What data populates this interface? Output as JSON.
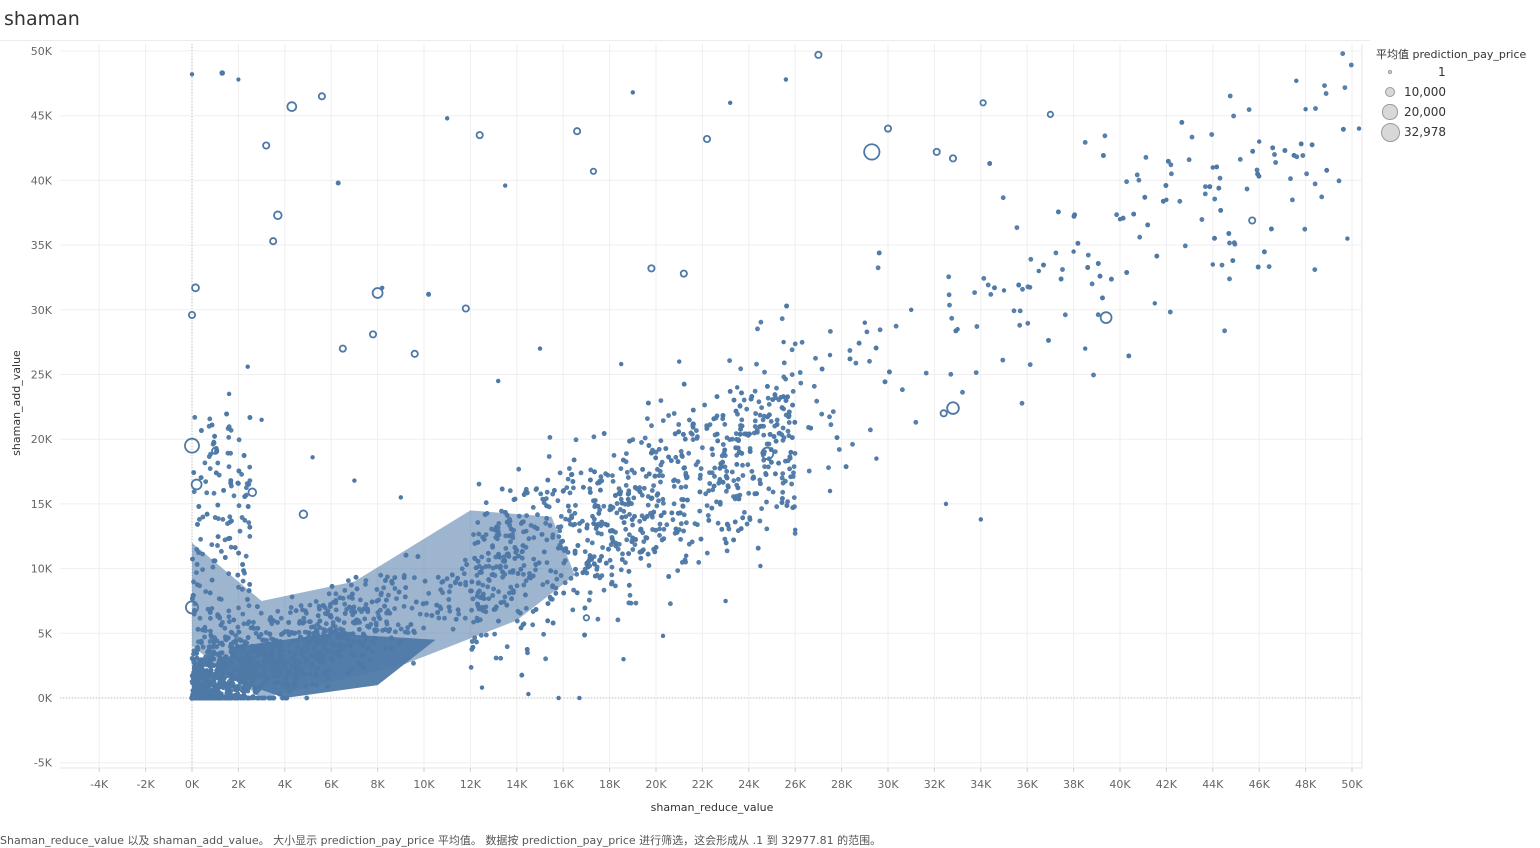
{
  "sheet": {
    "title": "shaman"
  },
  "legend": {
    "title": "平均值 prediction_pay_price",
    "items": [
      {
        "label": "1",
        "value": 1
      },
      {
        "label": "10,000",
        "value": 10000
      },
      {
        "label": "20,000",
        "value": 20000
      },
      {
        "label": "32,978",
        "value": 32978
      }
    ]
  },
  "caption": "Shaman_reduce_value 以及 shaman_add_value。 大小显示 prediction_pay_price 平均值。 数据按 prediction_pay_price 进行筛选，这会形成从 .1 到 32977.81 的范围。",
  "colors": {
    "mark": "#4e79a7",
    "grid": "#efefef",
    "zero_line": "#bdbdbd",
    "legend_fill": "#d8d8d8"
  },
  "chart_data": {
    "type": "scatter",
    "title": "shaman",
    "xlabel": "shaman_reduce_value",
    "ylabel": "shaman_add_value",
    "size_field": "平均值 prediction_pay_price",
    "size_range": [
      1,
      32978
    ],
    "xlim": [
      -5000,
      50500
    ],
    "ylim": [
      -5500,
      50500
    ],
    "x_ticks": [
      {
        "value": -4000,
        "label": "-4K"
      },
      {
        "value": -2000,
        "label": "-2K"
      },
      {
        "value": 0,
        "label": "0K"
      },
      {
        "value": 2000,
        "label": "2K"
      },
      {
        "value": 4000,
        "label": "4K"
      },
      {
        "value": 6000,
        "label": "6K"
      },
      {
        "value": 8000,
        "label": "8K"
      },
      {
        "value": 10000,
        "label": "10K"
      },
      {
        "value": 12000,
        "label": "12K"
      },
      {
        "value": 14000,
        "label": "14K"
      },
      {
        "value": 16000,
        "label": "16K"
      },
      {
        "value": 18000,
        "label": "18K"
      },
      {
        "value": 20000,
        "label": "20K"
      },
      {
        "value": 22000,
        "label": "22K"
      },
      {
        "value": 24000,
        "label": "24K"
      },
      {
        "value": 26000,
        "label": "26K"
      },
      {
        "value": 28000,
        "label": "28K"
      },
      {
        "value": 30000,
        "label": "30K"
      },
      {
        "value": 32000,
        "label": "32K"
      },
      {
        "value": 34000,
        "label": "34K"
      },
      {
        "value": 36000,
        "label": "36K"
      },
      {
        "value": 38000,
        "label": "38K"
      },
      {
        "value": 40000,
        "label": "40K"
      },
      {
        "value": 42000,
        "label": "42K"
      },
      {
        "value": 44000,
        "label": "44K"
      },
      {
        "value": 46000,
        "label": "46K"
      },
      {
        "value": 48000,
        "label": "48K"
      },
      {
        "value": 50000,
        "label": "50K"
      }
    ],
    "y_ticks": [
      {
        "value": -5000,
        "label": "-5K"
      },
      {
        "value": 0,
        "label": "0K"
      },
      {
        "value": 5000,
        "label": "5K"
      },
      {
        "value": 10000,
        "label": "10K"
      },
      {
        "value": 15000,
        "label": "15K"
      },
      {
        "value": 20000,
        "label": "20K"
      },
      {
        "value": 25000,
        "label": "25K"
      },
      {
        "value": 30000,
        "label": "30K"
      },
      {
        "value": 35000,
        "label": "35K"
      },
      {
        "value": 40000,
        "label": "40K"
      },
      {
        "value": 45000,
        "label": "45K"
      },
      {
        "value": 50000,
        "label": "50K"
      }
    ],
    "grid": true,
    "legend_position": "top-right",
    "points": [
      {
        "x": 0,
        "y": 0,
        "size": 2500
      },
      {
        "x": 0,
        "y": 7000,
        "size": 15000
      },
      {
        "x": 0,
        "y": 19500,
        "size": 20000
      },
      {
        "x": 200,
        "y": 16500,
        "size": 10000
      },
      {
        "x": 150,
        "y": 31700,
        "size": 5000
      },
      {
        "x": 0,
        "y": 29600,
        "size": 4000
      },
      {
        "x": 0,
        "y": 48200,
        "size": 1500
      },
      {
        "x": 1300,
        "y": 48300,
        "size": 2500
      },
      {
        "x": 2000,
        "y": 47800,
        "size": 800
      },
      {
        "x": 4300,
        "y": 45700,
        "size": 8000
      },
      {
        "x": 5600,
        "y": 46500,
        "size": 4000
      },
      {
        "x": 3200,
        "y": 42700,
        "size": 4000
      },
      {
        "x": 3700,
        "y": 37300,
        "size": 6000
      },
      {
        "x": 3500,
        "y": 35300,
        "size": 4000
      },
      {
        "x": 6300,
        "y": 39800,
        "size": 2000
      },
      {
        "x": 8000,
        "y": 31300,
        "size": 10000
      },
      {
        "x": 10200,
        "y": 31200,
        "size": 2000
      },
      {
        "x": 11800,
        "y": 30100,
        "size": 4000
      },
      {
        "x": 12400,
        "y": 43500,
        "size": 4000
      },
      {
        "x": 16600,
        "y": 43800,
        "size": 4000
      },
      {
        "x": 17300,
        "y": 40700,
        "size": 3000
      },
      {
        "x": 19800,
        "y": 33200,
        "size": 4000
      },
      {
        "x": 21200,
        "y": 32800,
        "size": 4000
      },
      {
        "x": 22200,
        "y": 43200,
        "size": 4000
      },
      {
        "x": 27000,
        "y": 49700,
        "size": 4000
      },
      {
        "x": 29300,
        "y": 42200,
        "size": 24000
      },
      {
        "x": 30000,
        "y": 44000,
        "size": 4000
      },
      {
        "x": 32100,
        "y": 42200,
        "size": 4000
      },
      {
        "x": 32800,
        "y": 41700,
        "size": 4000
      },
      {
        "x": 34100,
        "y": 46000,
        "size": 3000
      },
      {
        "x": 37000,
        "y": 45100,
        "size": 3000
      },
      {
        "x": 39400,
        "y": 29400,
        "size": 12000
      },
      {
        "x": 45700,
        "y": 36900,
        "size": 4000
      },
      {
        "x": 32800,
        "y": 22400,
        "size": 14000
      },
      {
        "x": 24800,
        "y": 18900,
        "size": 14000
      },
      {
        "x": 32400,
        "y": 22000,
        "size": 4000
      },
      {
        "x": 9600,
        "y": 26600,
        "size": 4000
      },
      {
        "x": 6500,
        "y": 27000,
        "size": 4000
      },
      {
        "x": 7800,
        "y": 28100,
        "size": 4000
      },
      {
        "x": 1000,
        "y": 19100,
        "size": 4000
      },
      {
        "x": 4800,
        "y": 14200,
        "size": 6000
      },
      {
        "x": 2600,
        "y": 15900,
        "size": 6000
      },
      {
        "x": 13200,
        "y": 24500,
        "size": 1500
      },
      {
        "x": 15000,
        "y": 27000,
        "size": 1500
      },
      {
        "x": 18500,
        "y": 25800,
        "size": 1500
      },
      {
        "x": 21000,
        "y": 26000,
        "size": 1500
      },
      {
        "x": 23500,
        "y": 24000,
        "size": 1500
      },
      {
        "x": 25500,
        "y": 27500,
        "size": 1500
      },
      {
        "x": 27500,
        "y": 26500,
        "size": 1500
      },
      {
        "x": 29000,
        "y": 29000,
        "size": 1500
      },
      {
        "x": 31000,
        "y": 30000,
        "size": 1500
      },
      {
        "x": 33000,
        "y": 28500,
        "size": 1500
      },
      {
        "x": 35000,
        "y": 31500,
        "size": 1500
      },
      {
        "x": 36500,
        "y": 33000,
        "size": 1500
      },
      {
        "x": 38000,
        "y": 34500,
        "size": 1500
      },
      {
        "x": 40000,
        "y": 37000,
        "size": 1500
      },
      {
        "x": 42000,
        "y": 38500,
        "size": 1500
      },
      {
        "x": 44000,
        "y": 41000,
        "size": 1500
      },
      {
        "x": 46000,
        "y": 43000,
        "size": 1500
      },
      {
        "x": 48000,
        "y": 45500,
        "size": 1500
      },
      {
        "x": 49800,
        "y": 35500,
        "size": 1500
      },
      {
        "x": 50300,
        "y": 44000,
        "size": 1500
      },
      {
        "x": 47600,
        "y": 47700,
        "size": 1500
      },
      {
        "x": 44000,
        "y": 33500,
        "size": 1500
      },
      {
        "x": 41500,
        "y": 30500,
        "size": 1500
      },
      {
        "x": 38500,
        "y": 27000,
        "size": 1500
      },
      {
        "x": 34000,
        "y": 13800,
        "size": 1500
      },
      {
        "x": 32500,
        "y": 15000,
        "size": 1500
      },
      {
        "x": 29500,
        "y": 18500,
        "size": 1500
      },
      {
        "x": 27500,
        "y": 16000,
        "size": 1500
      },
      {
        "x": 23000,
        "y": 7500,
        "size": 1500
      },
      {
        "x": 20300,
        "y": 4800,
        "size": 1500
      },
      {
        "x": 17000,
        "y": 6200,
        "size": 3000
      },
      {
        "x": 15800,
        "y": 0,
        "size": 1500
      },
      {
        "x": 16700,
        "y": 0,
        "size": 1500
      },
      {
        "x": 14500,
        "y": 300,
        "size": 1500
      },
      {
        "x": 12500,
        "y": 800,
        "size": 1500
      },
      {
        "x": 18600,
        "y": 3000,
        "size": 1500
      },
      {
        "x": 21300,
        "y": 11000,
        "size": 1500
      },
      {
        "x": 24500,
        "y": 10200,
        "size": 1500
      },
      {
        "x": 26000,
        "y": 13000,
        "size": 1500
      },
      {
        "x": 19000,
        "y": 46800,
        "size": 1500
      },
      {
        "x": 23200,
        "y": 46000,
        "size": 1500
      },
      {
        "x": 25600,
        "y": 47800,
        "size": 1500
      },
      {
        "x": 11000,
        "y": 44800,
        "size": 1500
      },
      {
        "x": 13500,
        "y": 39600,
        "size": 1500
      },
      {
        "x": 8200,
        "y": 31700,
        "size": 1500
      },
      {
        "x": 2400,
        "y": 25600,
        "size": 1500
      },
      {
        "x": 1600,
        "y": 23500,
        "size": 1500
      },
      {
        "x": 3000,
        "y": 21500,
        "size": 1500
      },
      {
        "x": 5200,
        "y": 18600,
        "size": 1500
      },
      {
        "x": 7000,
        "y": 16800,
        "size": 1500
      },
      {
        "x": 9000,
        "y": 15500,
        "size": 1500
      }
    ]
  }
}
